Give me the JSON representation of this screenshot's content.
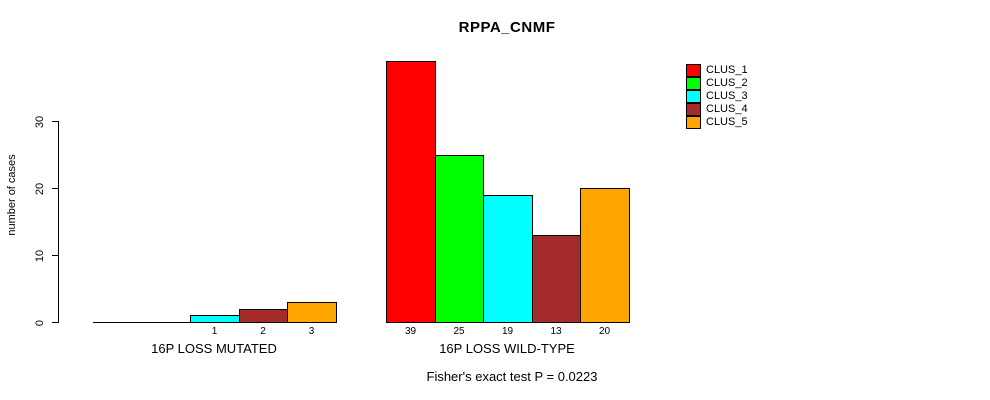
{
  "title": "RPPA_CNMF",
  "footnote": "Fisher's exact test P = 0.0223",
  "chart_data": {
    "type": "bar",
    "title": "RPPA_CNMF",
    "ylabel": "number of cases",
    "ylim": [
      0,
      30
    ],
    "yticks": [
      0,
      10,
      20,
      30
    ],
    "grid": false,
    "legend_position": "top-right",
    "legend_entries": [
      "CLUS_1",
      "CLUS_2",
      "CLUS_3",
      "CLUS_4",
      "CLUS_5"
    ],
    "series_colors": [
      "#FF0000",
      "#00FF00",
      "#00FFFF",
      "#A52A2A",
      "#FFA500"
    ],
    "groups": [
      {
        "label": "16P LOSS MUTATED",
        "values": [
          0,
          0,
          1,
          2,
          3
        ],
        "bar_labels": [
          "",
          "",
          "1",
          "2",
          "3"
        ]
      },
      {
        "label": "16P LOSS WILD-TYPE",
        "values": [
          39,
          25,
          19,
          13,
          20
        ],
        "bar_labels": [
          "39",
          "25",
          "19",
          "13",
          "20"
        ]
      }
    ],
    "annotation": "Fisher's exact test P = 0.0223"
  }
}
